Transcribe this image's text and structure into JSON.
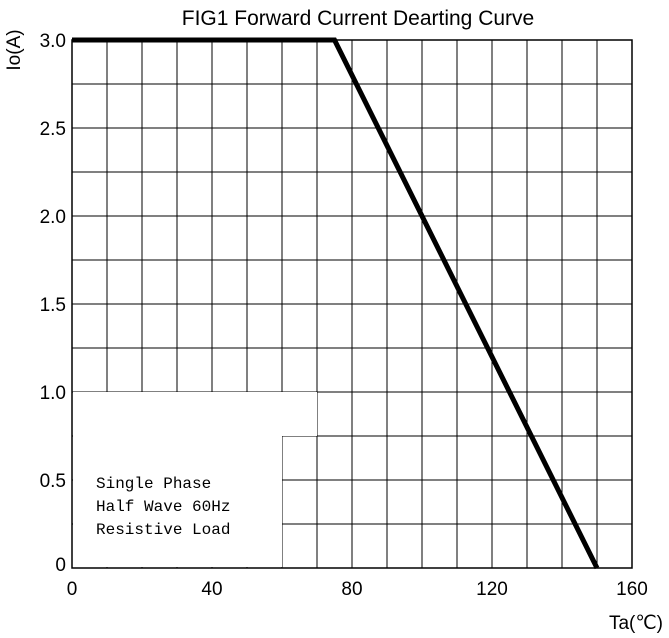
{
  "chart_data": {
    "type": "line",
    "title": "FIG1 Forward Current Dearting Curve",
    "xlabel": "Ta(℃)",
    "ylabel": "Io(A)",
    "xlim": [
      0,
      160
    ],
    "ylim": [
      0,
      3.0
    ],
    "x_ticks": [
      "0",
      "40",
      "80",
      "120",
      "160"
    ],
    "y_ticks": [
      "0",
      "0.5",
      "1.0",
      "1.5",
      "2.0",
      "2.5",
      "3.0"
    ],
    "grid": true,
    "series": [
      {
        "x": [
          0,
          75,
          150
        ],
        "y": [
          3.0,
          3.0,
          0
        ]
      }
    ],
    "annotation": [
      "Single Phase",
      "Half Wave 60Hz",
      "Resistive Load"
    ],
    "line_color": "#000000"
  }
}
